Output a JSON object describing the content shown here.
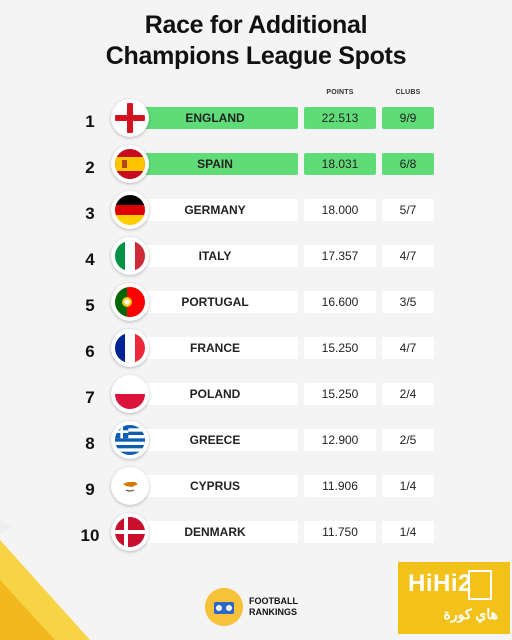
{
  "title_line1": "Race for Additional",
  "title_line2": "Champions League Spots",
  "headers": {
    "points": "POINTS",
    "clubs": "CLUBS"
  },
  "highlight_color": "#5fdc78",
  "rows": [
    {
      "rank": "1",
      "country": "ENGLAND",
      "points": "22.513",
      "clubs": "9/9",
      "flag": "england-flag-icon"
    },
    {
      "rank": "2",
      "country": "SPAIN",
      "points": "18.031",
      "clubs": "6/8",
      "flag": "spain-flag-icon"
    },
    {
      "rank": "3",
      "country": "GERMANY",
      "points": "18.000",
      "clubs": "5/7",
      "flag": "germany-flag-icon"
    },
    {
      "rank": "4",
      "country": "ITALY",
      "points": "17.357",
      "clubs": "4/7",
      "flag": "italy-flag-icon"
    },
    {
      "rank": "5",
      "country": "PORTUGAL",
      "points": "16.600",
      "clubs": "3/5",
      "flag": "portugal-flag-icon"
    },
    {
      "rank": "6",
      "country": "FRANCE",
      "points": "15.250",
      "clubs": "4/7",
      "flag": "france-flag-icon"
    },
    {
      "rank": "7",
      "country": "POLAND",
      "points": "15.250",
      "clubs": "2/4",
      "flag": "poland-flag-icon"
    },
    {
      "rank": "8",
      "country": "GREECE",
      "points": "12.900",
      "clubs": "2/5",
      "flag": "greece-flag-icon"
    },
    {
      "rank": "9",
      "country": "CYPRUS",
      "points": "11.906",
      "clubs": "1/4",
      "flag": "cyprus-flag-icon"
    },
    {
      "rank": "10",
      "country": "DENMARK",
      "points": "11.750",
      "clubs": "1/4",
      "flag": "denmark-flag-icon"
    }
  ],
  "brand": {
    "line1": "FOOTBALL",
    "line2": "RANKINGS"
  },
  "watermark": {
    "main": "HiHi2",
    "sub": "هاي كورة"
  }
}
